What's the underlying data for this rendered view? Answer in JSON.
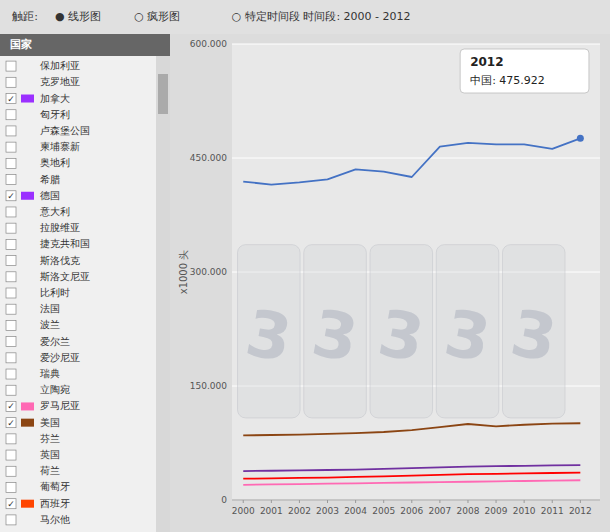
{
  "chart_data": {
    "type": "line",
    "x": [
      2000,
      2001,
      2002,
      2003,
      2004,
      2005,
      2006,
      2007,
      2008,
      2009,
      2010,
      2011,
      2012
    ],
    "xlim": [
      1999.6,
      2012.7
    ],
    "xticks": [
      2000,
      2001,
      2002,
      2003,
      2004,
      2005,
      2006,
      2007,
      2008,
      2009,
      2010,
      2011,
      2012
    ],
    "ylim": [
      0,
      600000
    ],
    "yticks": [
      0,
      {
        "value": 150000,
        "label": "150.000"
      },
      {
        "value": 300000,
        "label": "300.000"
      },
      {
        "value": 450000,
        "label": "450.000"
      },
      {
        "value": 600000,
        "label": "600.000"
      }
    ],
    "ylabel": "x1000 头",
    "grid": true,
    "series": [
      {
        "color": "#4472c4",
        "marker": "last",
        "values": [
          419000,
          415000,
          418000,
          422000,
          435000,
          432000,
          425000,
          465000,
          470000,
          468000,
          468000,
          462000,
          475922
        ]
      },
      {
        "color": "#8B4513",
        "values": [
          85000,
          85500,
          86000,
          87000,
          88000,
          89500,
          92000,
          96000,
          100000,
          97000,
          99000,
          100500,
          101000
        ]
      },
      {
        "color": "#7030A0",
        "values": [
          38000,
          38500,
          39000,
          39500,
          40000,
          41000,
          42000,
          43000,
          44000,
          44500,
          45000,
          45500,
          46000
        ]
      },
      {
        "color": "#FF0000",
        "values": [
          28000,
          28500,
          29000,
          29500,
          30500,
          31000,
          32000,
          33000,
          34000,
          34500,
          35000,
          35500,
          36000
        ]
      },
      {
        "color": "#FF69B4",
        "values": [
          20000,
          20500,
          21000,
          21500,
          22000,
          22500,
          23000,
          23500,
          24000,
          24500,
          25000,
          25500,
          26000
        ]
      }
    ],
    "tooltip": {
      "title": "2012",
      "text": "中国: 475.922"
    },
    "watermark": "3",
    "toolbar": [
      "触距:",
      "● 线形图",
      "○ 疯形图",
      "○ 特定时间段   时间段: 2000 - 2012"
    ],
    "sidebar": {
      "header": "国家",
      "check_mark": "✓",
      "items": [
        "保加利亚",
        "克罗地亚",
        "加拿大",
        "匈牙利",
        "卢森堡公国",
        "柬埔寨新",
        "奥地利",
        "希腊",
        "德国",
        "意大利",
        "拉脫维亚",
        "捷克共和国",
        "斯洛伐克",
        "斯洛文尼亚",
        "比利时",
        "法国",
        "波兰",
        "爱尔兰",
        "爱沙尼亚",
        "瑞典",
        "立陶宛",
        "罗马尼亚",
        "美国",
        "芬兰",
        "英国",
        "荷兰",
        "葡萄牙",
        "西班牙",
        "马尔他"
      ],
      "checked": [
        2,
        8,
        21,
        22,
        27
      ],
      "colors": [
        "#9B30FF",
        "#9B30FF",
        "#FF69B4",
        "#8B4513",
        "#FF4500"
      ]
    }
  }
}
